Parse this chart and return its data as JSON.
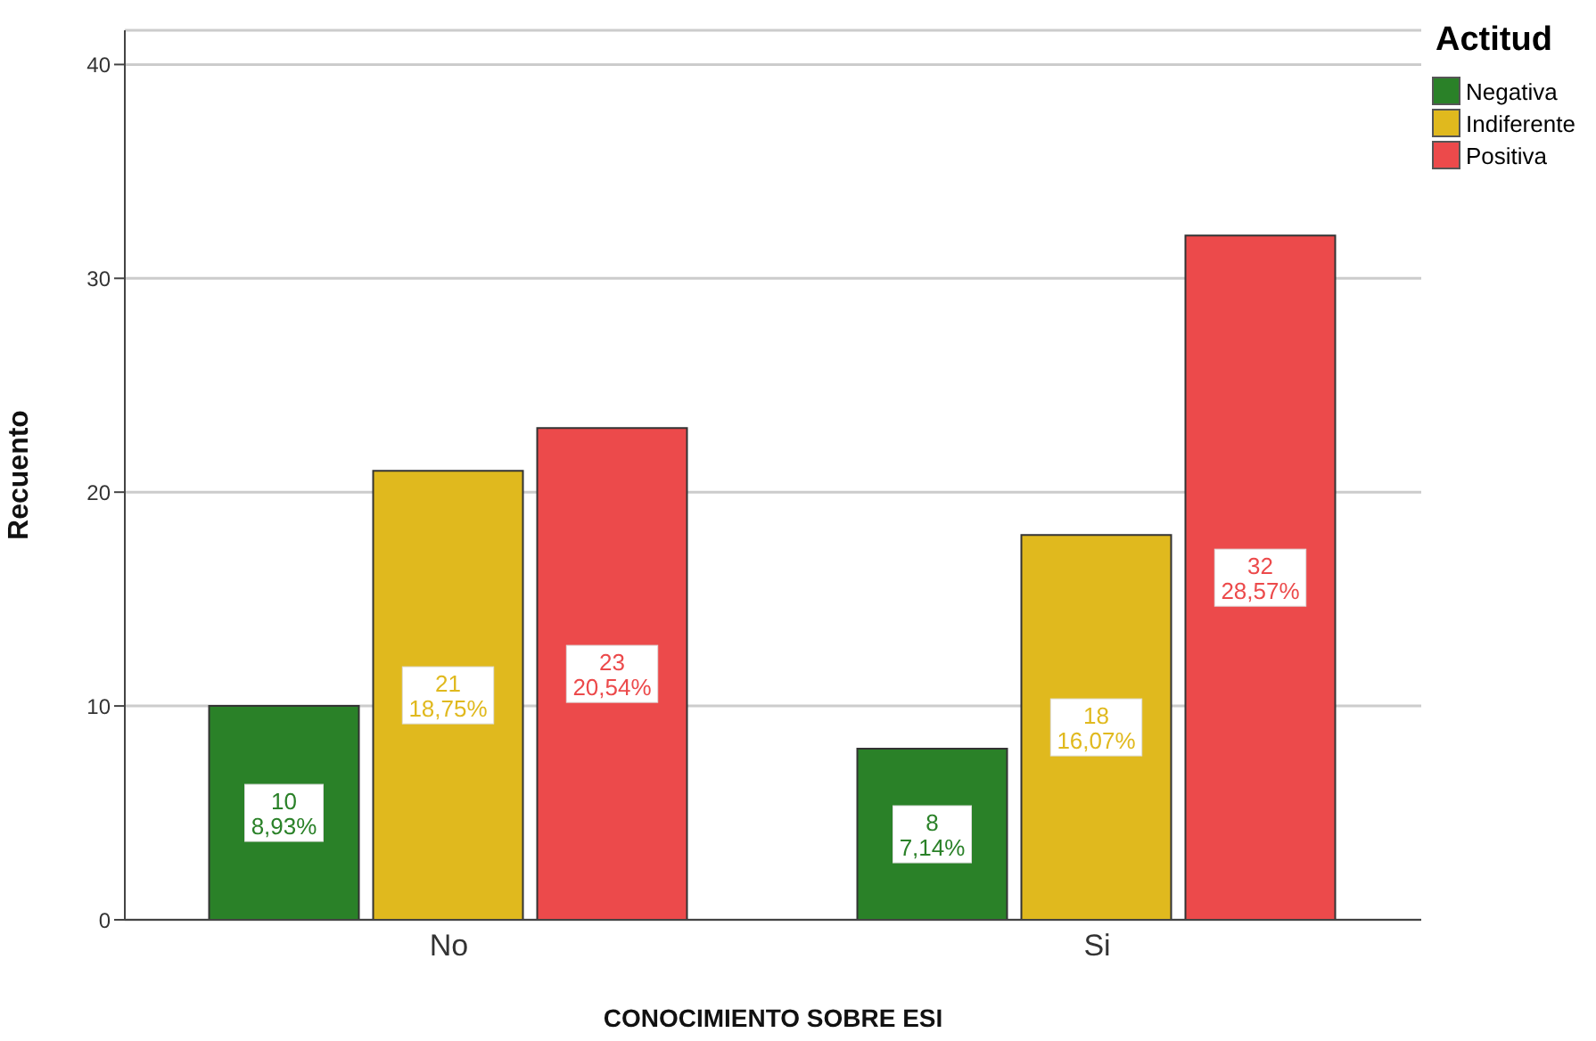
{
  "chart_data": {
    "type": "bar",
    "xlabel": "CONOCIMIENTO SOBRE ESI",
    "ylabel": "Recuento",
    "legend_title": "Actitud",
    "categories": [
      "No",
      "Si"
    ],
    "series": [
      {
        "name": "Negativa",
        "color": "#2a8128",
        "values": [
          10,
          8
        ],
        "value_labels": [
          "10\n8,93%",
          "8\n7,14%"
        ]
      },
      {
        "name": "Indiferente",
        "color": "#e0b91e",
        "values": [
          21,
          18
        ],
        "value_labels": [
          "21\n18,75%",
          "18\n16,07%"
        ]
      },
      {
        "name": "Positiva",
        "color": "#ec4a4b",
        "values": [
          23,
          32
        ],
        "value_labels": [
          "23\n20,54%",
          "32\n28,57%"
        ]
      }
    ],
    "ylim": [
      0,
      41.6
    ],
    "yticks": [
      0,
      10,
      20,
      30,
      40
    ],
    "grid": "y",
    "legend": "top right"
  }
}
